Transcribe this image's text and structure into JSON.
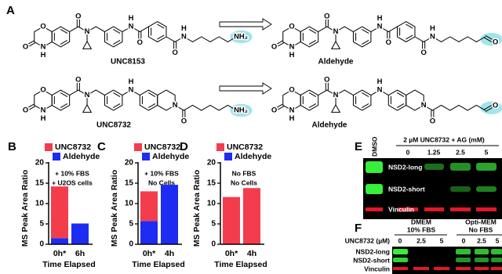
{
  "scheme": {
    "label": "A",
    "rows": [
      {
        "reactant": {
          "name": "UNC8153",
          "atoms": [
            "O",
            "O",
            "N",
            "H",
            "O",
            "N",
            "N",
            "H",
            "O",
            "O",
            "N",
            "H",
            "NH₂"
          ]
        },
        "product": {
          "name": "Aldehyde",
          "atoms": [
            "O",
            "O",
            "N",
            "H",
            "O",
            "N",
            "N",
            "H",
            "O",
            "O",
            "N",
            "H",
            "O"
          ]
        }
      },
      {
        "reactant": {
          "name": "UNC8732",
          "atoms": [
            "O",
            "O",
            "N",
            "H",
            "O",
            "N",
            "N",
            "H",
            "N",
            "O",
            "NH₂"
          ]
        },
        "product": {
          "name": "Aldehyde",
          "atoms": [
            "O",
            "O",
            "N",
            "H",
            "O",
            "N",
            "N",
            "H",
            "N",
            "O",
            "O"
          ]
        }
      }
    ]
  },
  "chart_data": [
    {
      "type": "bar",
      "stacked": true,
      "panel_label": "B",
      "ylabel": "MS Peak Area Ratio",
      "xlabel": "Time Elapsed",
      "annotation": [
        "+ 10% FBS",
        "+ U2OS cells"
      ],
      "categories": [
        "0h*",
        "6h"
      ],
      "series": [
        {
          "name": "UNC8732",
          "color": "#f33d4d",
          "values": [
            12.7,
            0
          ]
        },
        {
          "name": "Aldehyde",
          "color": "#1d2cf3",
          "values": [
            1.5,
            5.1
          ]
        }
      ],
      "ylim": [
        0,
        20
      ],
      "yticks": [
        0,
        5,
        10,
        15,
        20
      ]
    },
    {
      "type": "bar",
      "stacked": true,
      "panel_label": "C",
      "ylabel": "MS Peak Area Ratio",
      "xlabel": "Time Elapsed",
      "annotation": [
        "+ 10% FBS",
        "No Cells"
      ],
      "categories": [
        "0h*",
        "4h"
      ],
      "series": [
        {
          "name": "UNC8732",
          "color": "#f33d4d",
          "values": [
            7.3,
            0
          ]
        },
        {
          "name": "Aldehyde",
          "color": "#1d2cf3",
          "values": [
            5.7,
            14.6
          ]
        }
      ],
      "ylim": [
        0,
        20
      ],
      "yticks": [
        0,
        5,
        10,
        15,
        20
      ]
    },
    {
      "type": "bar",
      "stacked": true,
      "panel_label": "D",
      "ylabel": "MS Peak Area Ratio",
      "xlabel": "Time Elapsed",
      "annotation": [
        "No FBS",
        "No Cells"
      ],
      "categories": [
        "0h*",
        "4h"
      ],
      "series": [
        {
          "name": "UNC8732",
          "color": "#f33d4d",
          "values": [
            11.6,
            13.8
          ]
        },
        {
          "name": "Aldehyde",
          "color": "#1d2cf3",
          "values": [
            0,
            0
          ]
        }
      ],
      "ylim": [
        0,
        20
      ],
      "yticks": [
        0,
        5,
        10,
        15,
        20
      ]
    }
  ],
  "blots": {
    "E": {
      "label": "E",
      "control": "DMSO",
      "treatment": "2 µM UNC8732 + AG (mM)",
      "lanes": [
        "0",
        "1.25",
        "2.5",
        "5"
      ],
      "rows": [
        "NSD2-long",
        "NSD2-short",
        "Vinculin"
      ]
    },
    "F": {
      "label": "F",
      "conditions": [
        [
          "DMEM",
          "10% FBS"
        ],
        [
          "Opti-MEM",
          "No FBS"
        ]
      ],
      "dose_label": "UNC8732 (µM)",
      "lanes": [
        "0",
        "2.5",
        "5",
        "0",
        "2.5",
        "5"
      ],
      "rows": [
        "NSD2-long",
        "NSD2-short",
        "Vinculin"
      ]
    }
  }
}
